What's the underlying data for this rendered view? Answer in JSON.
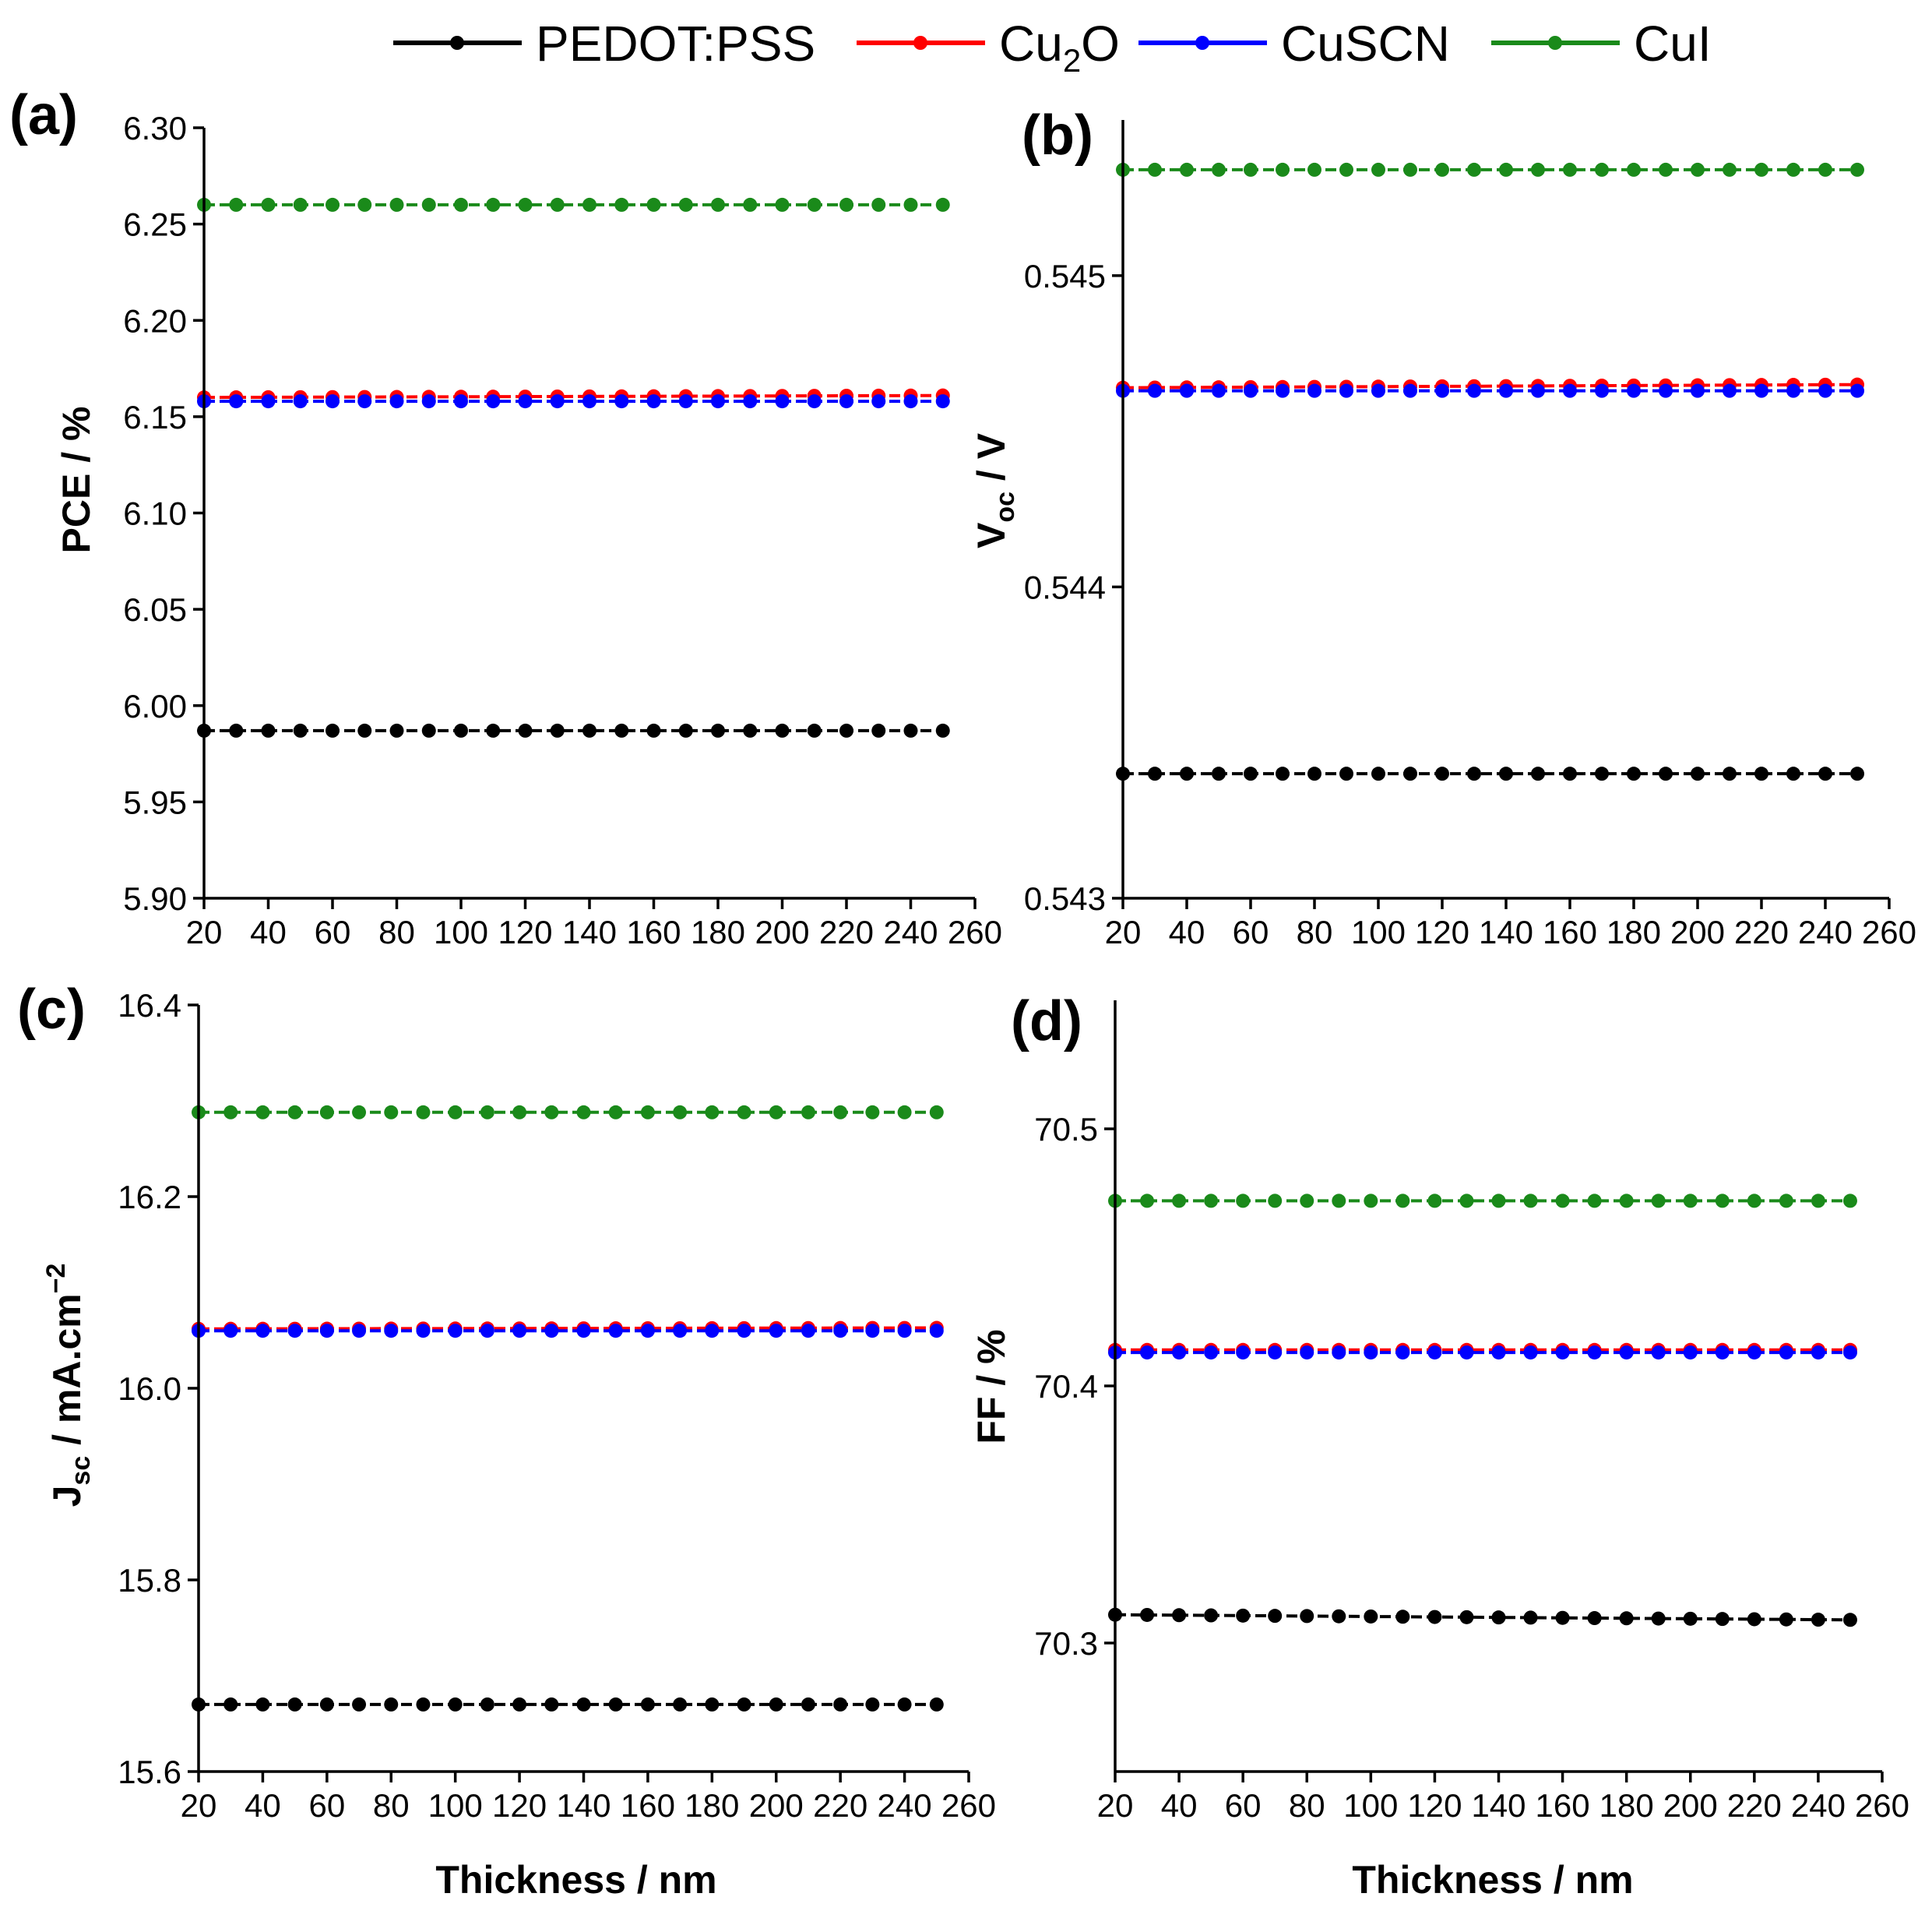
{
  "legend": [
    {
      "name": "PEDOT:PSS",
      "label": "PEDOT:PSS",
      "color": "#000000"
    },
    {
      "name": "Cu2O",
      "label_main": "Cu",
      "label_sub": "2",
      "label_tail": "O",
      "color": "#ff0000"
    },
    {
      "name": "CuSCN",
      "label": "CuSCN",
      "color": "#0000ff"
    },
    {
      "name": "CuI",
      "label": "CuI",
      "color": "#1a8a1a"
    }
  ],
  "chart_data": [
    {
      "type": "line",
      "panel_label": "(a)",
      "xlabel": "",
      "ylabel": "PCE / %",
      "xlim": [
        20,
        260
      ],
      "ylim": [
        5.9,
        6.3
      ],
      "xticks": [
        20,
        40,
        60,
        80,
        100,
        120,
        140,
        160,
        180,
        200,
        220,
        240,
        260
      ],
      "xtick_labels": [
        "20",
        "40",
        "60",
        "80",
        "100",
        "120",
        "140",
        "160",
        "180",
        "200",
        "220",
        "240",
        "260"
      ],
      "yticks": [
        5.9,
        5.95,
        6.0,
        6.05,
        6.1,
        6.15,
        6.2,
        6.25,
        6.3
      ],
      "ytick_labels": [
        "5.90",
        "5.95",
        "6.00",
        "6.05",
        "6.10",
        "6.15",
        "6.20",
        "6.25",
        "6.30"
      ],
      "x": [
        20,
        30,
        40,
        50,
        60,
        70,
        80,
        90,
        100,
        110,
        120,
        130,
        140,
        150,
        160,
        170,
        180,
        190,
        200,
        210,
        220,
        230,
        240,
        250
      ],
      "series": [
        {
          "name": "PEDOT:PSS",
          "color": "#000000",
          "start": 5.987,
          "end": 5.987
        },
        {
          "name": "Cu2O",
          "color": "#ff0000",
          "start": 6.16,
          "end": 6.161
        },
        {
          "name": "CuSCN",
          "color": "#0000ff",
          "start": 6.158,
          "end": 6.158
        },
        {
          "name": "CuI",
          "color": "#1a8a1a",
          "start": 6.26,
          "end": 6.26
        }
      ]
    },
    {
      "type": "line",
      "panel_label": "(b)",
      "xlabel": "",
      "ylabel_main": "V",
      "ylabel_sub": "oc",
      "ylabel_tail": " / V",
      "xlim": [
        20,
        260
      ],
      "ylim": [
        0.543,
        0.5455
      ],
      "xticks": [
        20,
        40,
        60,
        80,
        100,
        120,
        140,
        160,
        180,
        200,
        220,
        240,
        260
      ],
      "xtick_labels": [
        "20",
        "40",
        "60",
        "80",
        "100",
        "120",
        "140",
        "160",
        "180",
        "200",
        "220",
        "240",
        "260"
      ],
      "yticks": [
        0.543,
        0.544,
        0.545
      ],
      "ytick_labels": [
        "0.543",
        "0.544",
        "0.545"
      ],
      "x": [
        20,
        30,
        40,
        50,
        60,
        70,
        80,
        90,
        100,
        110,
        120,
        130,
        140,
        150,
        160,
        170,
        180,
        190,
        200,
        210,
        220,
        230,
        240,
        250
      ],
      "series": [
        {
          "name": "PEDOT:PSS",
          "color": "#000000",
          "start": 0.5434,
          "end": 0.5434
        },
        {
          "name": "Cu2O",
          "color": "#ff0000",
          "start": 0.54464,
          "end": 0.54465
        },
        {
          "name": "CuSCN",
          "color": "#0000ff",
          "start": 0.54463,
          "end": 0.54463
        },
        {
          "name": "CuI",
          "color": "#1a8a1a",
          "start": 0.54534,
          "end": 0.54534
        }
      ]
    },
    {
      "type": "line",
      "panel_label": "(c)",
      "xlabel": "Thickness / nm",
      "ylabel_main": "J",
      "ylabel_sub": "sc",
      "ylabel_tail": " / mA.cm",
      "ylabel_sup": "−2",
      "xlim": [
        20,
        260
      ],
      "ylim": [
        15.6,
        16.4
      ],
      "xticks": [
        20,
        40,
        60,
        80,
        100,
        120,
        140,
        160,
        180,
        200,
        220,
        240,
        260
      ],
      "xtick_labels": [
        "20",
        "40",
        "60",
        "80",
        "100",
        "120",
        "140",
        "160",
        "180",
        "200",
        "220",
        "240",
        "260"
      ],
      "yticks": [
        15.6,
        15.8,
        16.0,
        16.2,
        16.4
      ],
      "ytick_labels": [
        "15.6",
        "15.8",
        "16.0",
        "16.2",
        "16.4"
      ],
      "x": [
        20,
        30,
        40,
        50,
        60,
        70,
        80,
        90,
        100,
        110,
        120,
        130,
        140,
        150,
        160,
        170,
        180,
        190,
        200,
        210,
        220,
        230,
        240,
        250
      ],
      "series": [
        {
          "name": "PEDOT:PSS",
          "color": "#000000",
          "start": 15.67,
          "end": 15.67
        },
        {
          "name": "Cu2O",
          "color": "#ff0000",
          "start": 16.062,
          "end": 16.063
        },
        {
          "name": "CuSCN",
          "color": "#0000ff",
          "start": 16.06,
          "end": 16.06
        },
        {
          "name": "CuI",
          "color": "#1a8a1a",
          "start": 16.288,
          "end": 16.288
        }
      ]
    },
    {
      "type": "line",
      "panel_label": "(d)",
      "xlabel": "Thickness / nm",
      "ylabel": "FF / %",
      "xlim": [
        20,
        260
      ],
      "ylim": [
        70.25,
        70.55
      ],
      "xticks": [
        20,
        40,
        60,
        80,
        100,
        120,
        140,
        160,
        180,
        200,
        220,
        240,
        260
      ],
      "xtick_labels": [
        "20",
        "40",
        "60",
        "80",
        "100",
        "120",
        "140",
        "160",
        "180",
        "200",
        "220",
        "240",
        "260"
      ],
      "yticks": [
        70.3,
        70.4,
        70.5
      ],
      "ytick_labels": [
        "70.3",
        "70.4",
        "70.5"
      ],
      "x": [
        20,
        30,
        40,
        50,
        60,
        70,
        80,
        90,
        100,
        110,
        120,
        130,
        140,
        150,
        160,
        170,
        180,
        190,
        200,
        210,
        220,
        230,
        240,
        250
      ],
      "series": [
        {
          "name": "PEDOT:PSS",
          "color": "#000000",
          "start": 70.311,
          "end": 70.309
        },
        {
          "name": "Cu2O",
          "color": "#ff0000",
          "start": 70.414,
          "end": 70.414
        },
        {
          "name": "CuSCN",
          "color": "#0000ff",
          "start": 70.413,
          "end": 70.413
        },
        {
          "name": "CuI",
          "color": "#1a8a1a",
          "start": 70.472,
          "end": 70.472
        }
      ]
    }
  ]
}
